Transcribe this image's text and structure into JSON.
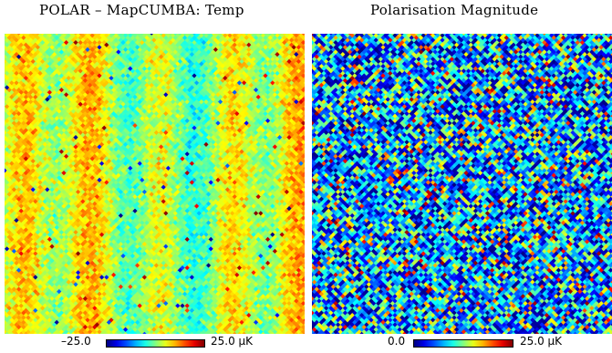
{
  "panels": [
    {
      "title": "POLAR – MapCUMBA: Temp"
    },
    {
      "title": "Polarisation Magnitude"
    }
  ],
  "chart_data": [
    {
      "type": "heatmap",
      "title": "POLAR – MapCUMBA: Temp",
      "colorscale": "jet",
      "range": [
        -25.0,
        25.0
      ],
      "unit": "μK",
      "colorbar_labels": {
        "min": "–25.0",
        "max": "25.0",
        "unit": "μK"
      },
      "description_values": {
        "mean_level": 3,
        "stripe_period_cells": 12
      }
    },
    {
      "type": "heatmap",
      "title": "Polarisation Magnitude",
      "colorscale": "jet",
      "range": [
        0.0,
        25.0
      ],
      "unit": "μK",
      "colorbar_labels": {
        "min": "0.0",
        "max": "25.0",
        "unit": "μK"
      },
      "description_values": {
        "mean_level": 7,
        "spread": 8
      }
    }
  ]
}
